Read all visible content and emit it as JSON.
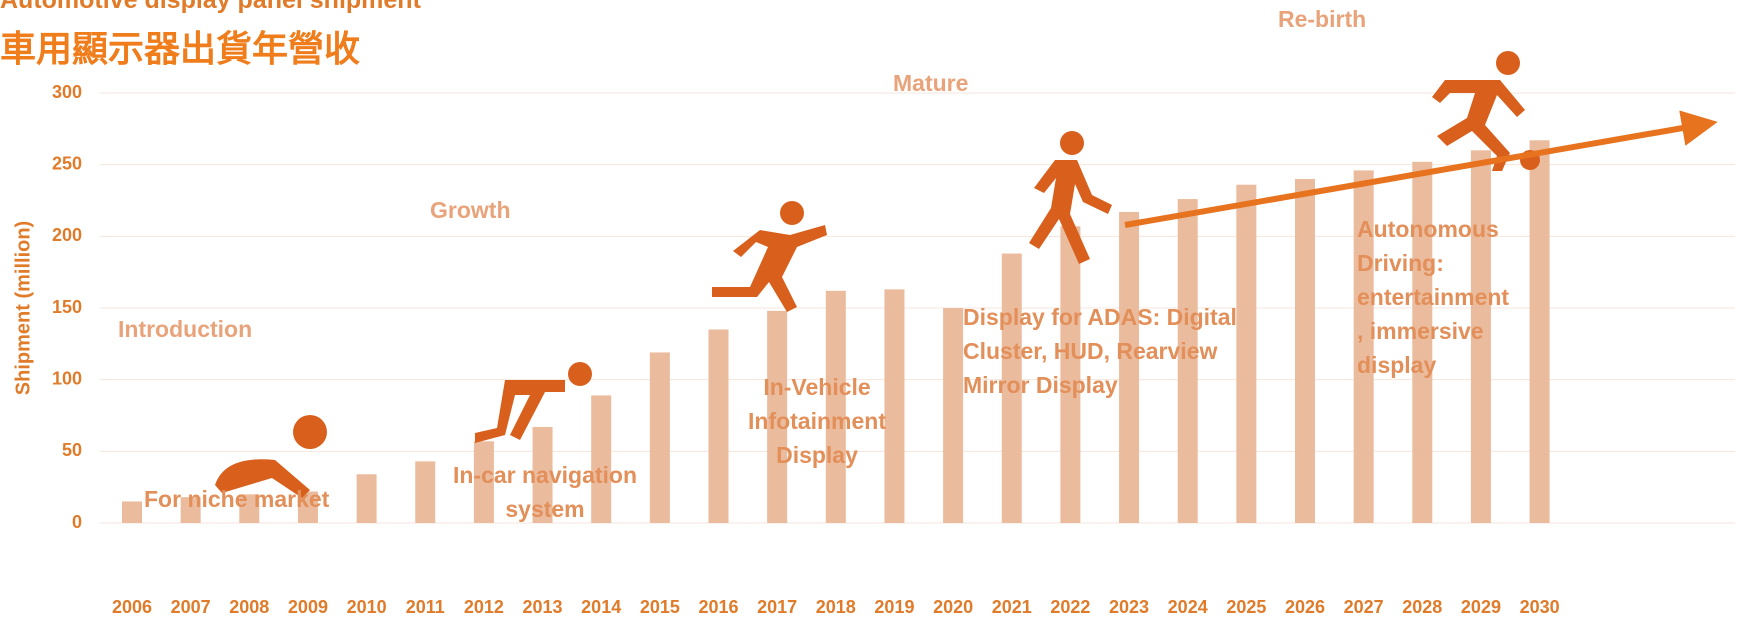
{
  "chart_data": {
    "type": "bar",
    "title": "Automotive display panel shipment",
    "subtitle": "車用顯示器出貨年營收",
    "y_label": "Shipment (million)",
    "categories": [
      "2006",
      "2007",
      "2008",
      "2009",
      "2010",
      "2011",
      "2012",
      "2013",
      "2014",
      "2015",
      "2016",
      "2017",
      "2018",
      "2019",
      "2020",
      "2021",
      "2022",
      "2023",
      "2024",
      "2025",
      "2026",
      "2027",
      "2028",
      "2029",
      "2030"
    ],
    "values": [
      15,
      18,
      20,
      22,
      34,
      43,
      57,
      67,
      89,
      119,
      135,
      148,
      162,
      163,
      150,
      188,
      207,
      217,
      226,
      236,
      240,
      246,
      252,
      260,
      267
    ],
    "color": "#ebbb9d",
    "ylim": [
      0,
      300
    ],
    "yticks": [
      0,
      50,
      100,
      150,
      200,
      250,
      300
    ],
    "grid": true,
    "annotations": [
      "Introduction",
      "Growth",
      "Mature",
      "Re-birth",
      "For niche market",
      "In-car navigation\nsystem",
      "In-Vehicle\nInfotainment\nDisplay",
      "Display for ADAS: Digital\nCluster, HUD, Rearview\nMirror Display",
      "Autonomous\nDriving:\nentertainment\n, immersive\ndisplay"
    ]
  }
}
